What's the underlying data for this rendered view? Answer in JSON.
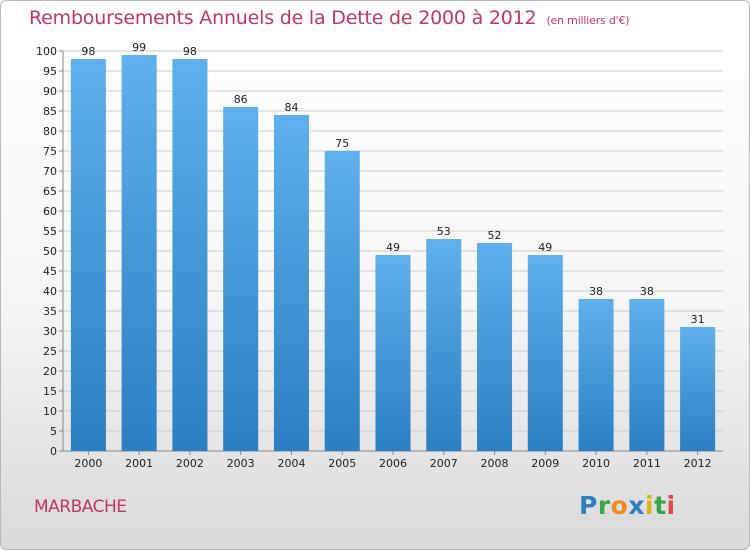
{
  "title": "Remboursements Annuels de la Dette de 2000 à 2012",
  "unit_note": "(en milliers d'€)",
  "commune": "MARBACHE",
  "brand": {
    "p": "P",
    "r": "r",
    "o": "o",
    "x": "x",
    "i": "i",
    "t": "t",
    "i2": "i"
  },
  "colors": {
    "title": "#c0356b",
    "bar_top": "#5fb0ec",
    "bar_bottom": "#2a7fc3",
    "grid": "#cccccc"
  },
  "chart_data": {
    "type": "bar",
    "categories": [
      "2000",
      "2001",
      "2002",
      "2003",
      "2004",
      "2005",
      "2006",
      "2007",
      "2008",
      "2009",
      "2010",
      "2011",
      "2012"
    ],
    "values": [
      98,
      99,
      98,
      86,
      84,
      75,
      49,
      53,
      52,
      49,
      38,
      38,
      31
    ],
    "ylim": [
      0,
      100
    ],
    "ytick_step": 5,
    "grid": true,
    "title": "Remboursements Annuels de la Dette de 2000 à 2012",
    "xlabel": "",
    "ylabel": ""
  }
}
